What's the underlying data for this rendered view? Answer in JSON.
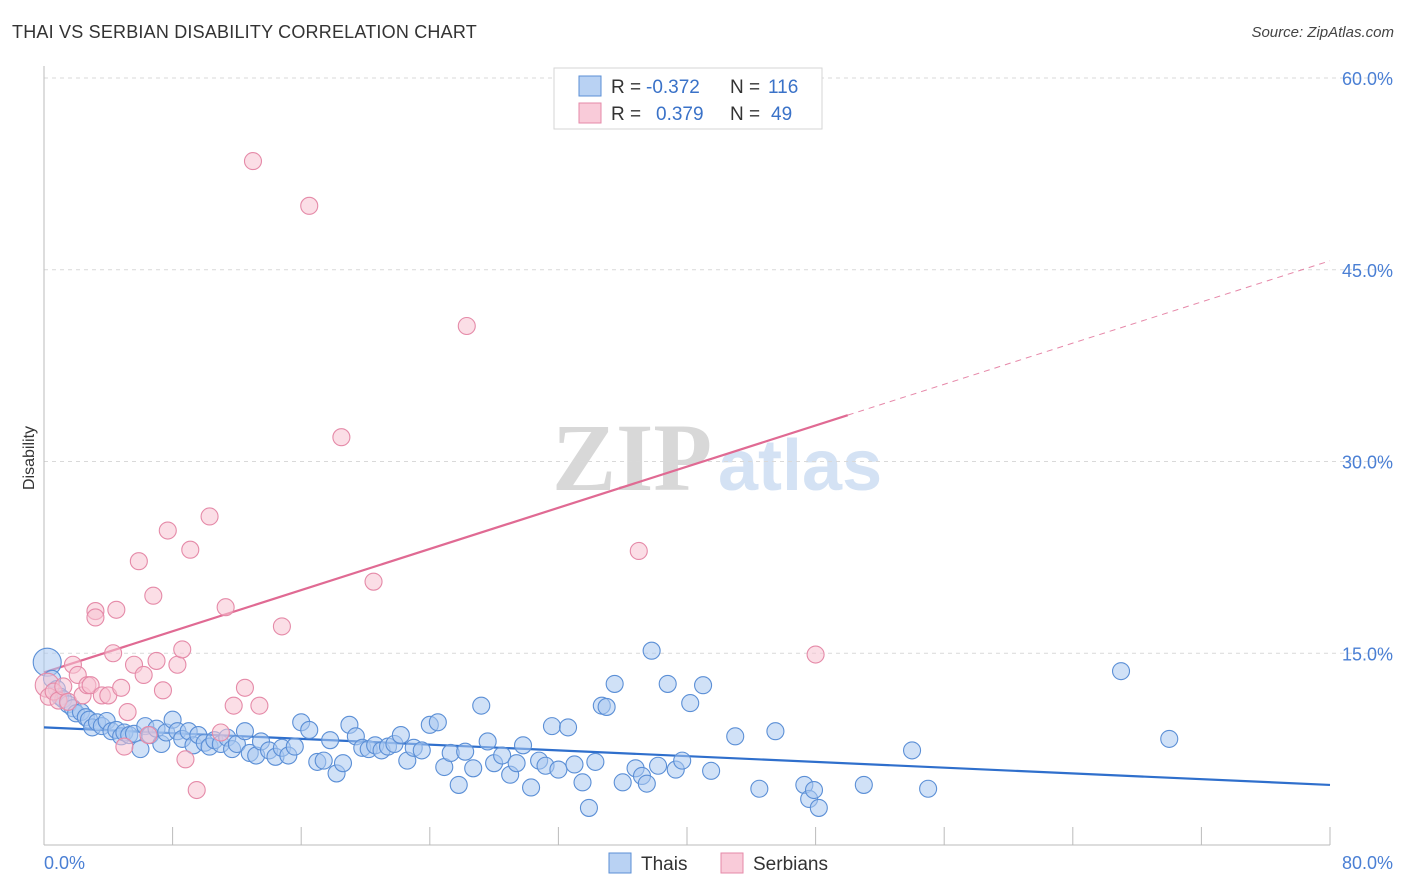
{
  "title": "THAI VS SERBIAN DISABILITY CORRELATION CHART",
  "source": "Source: ZipAtlas.com",
  "watermark": {
    "zip": "ZIP",
    "atlas": "atlas"
  },
  "colors": {
    "thais_fill": "#a9c8f0",
    "thais_stroke": "#5b8fd6",
    "thais_line": "#2f6fcc",
    "serbians_fill": "#f7c2d2",
    "serbians_stroke": "#e58aa8",
    "serbians_line": "#e06a93",
    "grid": "#d9d9d9",
    "tick_text": "#4a7fd4"
  },
  "legend_box": {
    "rows": [
      {
        "r_label": "R =",
        "r_value": "-0.372",
        "n_label": "N =",
        "n_value": "116"
      },
      {
        "r_label": "R =",
        "r_value": "0.379",
        "n_label": "N =",
        "n_value": "49"
      }
    ]
  },
  "chart_data": {
    "type": "scatter",
    "title": "THAI VS SERBIAN DISABILITY CORRELATION CHART",
    "xlabel": "",
    "ylabel": "Disability",
    "xlim": [
      0,
      80
    ],
    "ylim": [
      0,
      60
    ],
    "x_tick_labels": [
      "0.0%",
      "80.0%"
    ],
    "y_tick_labels": [
      "15.0%",
      "30.0%",
      "45.0%",
      "60.0%"
    ],
    "y_ticks": [
      15,
      30,
      45,
      60
    ],
    "grid": true,
    "legend_placement": "bottom-center",
    "series": [
      {
        "name": "Thais",
        "r": -0.372,
        "n": 116,
        "trend": {
          "x": [
            0,
            80
          ],
          "y": [
            9.2,
            4.7
          ],
          "dashed_from": null
        },
        "points": [
          [
            0.2,
            14.3
          ],
          [
            0.5,
            13.0
          ],
          [
            0.8,
            12.2
          ],
          [
            1.0,
            11.6
          ],
          [
            1.2,
            11.4
          ],
          [
            1.5,
            11.0
          ],
          [
            1.8,
            10.7
          ],
          [
            2.0,
            10.3
          ],
          [
            2.3,
            10.4
          ],
          [
            2.6,
            10.0
          ],
          [
            2.8,
            9.8
          ],
          [
            3.0,
            9.2
          ],
          [
            3.3,
            9.6
          ],
          [
            3.6,
            9.3
          ],
          [
            3.9,
            9.7
          ],
          [
            4.2,
            8.9
          ],
          [
            4.5,
            9.0
          ],
          [
            4.8,
            8.5
          ],
          [
            5.0,
            8.8
          ],
          [
            5.3,
            8.6
          ],
          [
            5.6,
            8.7
          ],
          [
            6.0,
            7.5
          ],
          [
            6.3,
            9.3
          ],
          [
            6.6,
            8.6
          ],
          [
            7.0,
            9.1
          ],
          [
            7.3,
            7.9
          ],
          [
            7.6,
            8.8
          ],
          [
            8.0,
            9.8
          ],
          [
            8.3,
            8.9
          ],
          [
            8.6,
            8.3
          ],
          [
            9.0,
            8.9
          ],
          [
            9.3,
            7.8
          ],
          [
            9.6,
            8.6
          ],
          [
            10.0,
            8.0
          ],
          [
            10.3,
            7.7
          ],
          [
            10.6,
            8.2
          ],
          [
            11.0,
            7.9
          ],
          [
            11.4,
            8.4
          ],
          [
            11.7,
            7.5
          ],
          [
            12.0,
            7.9
          ],
          [
            12.5,
            8.9
          ],
          [
            12.8,
            7.2
          ],
          [
            13.2,
            7.0
          ],
          [
            13.5,
            8.1
          ],
          [
            14.0,
            7.4
          ],
          [
            14.4,
            6.9
          ],
          [
            14.8,
            7.6
          ],
          [
            15.2,
            7.0
          ],
          [
            15.6,
            7.7
          ],
          [
            16.0,
            9.6
          ],
          [
            16.5,
            9.0
          ],
          [
            17.0,
            6.5
          ],
          [
            17.4,
            6.6
          ],
          [
            17.8,
            8.2
          ],
          [
            18.2,
            5.6
          ],
          [
            18.6,
            6.4
          ],
          [
            19.0,
            9.4
          ],
          [
            19.4,
            8.5
          ],
          [
            19.8,
            7.6
          ],
          [
            20.2,
            7.5
          ],
          [
            20.6,
            7.8
          ],
          [
            21.0,
            7.4
          ],
          [
            21.4,
            7.7
          ],
          [
            21.8,
            7.9
          ],
          [
            22.2,
            8.6
          ],
          [
            22.6,
            6.6
          ],
          [
            23.0,
            7.6
          ],
          [
            23.5,
            7.4
          ],
          [
            24.0,
            9.4
          ],
          [
            24.5,
            9.6
          ],
          [
            24.9,
            6.1
          ],
          [
            25.3,
            7.2
          ],
          [
            25.8,
            4.7
          ],
          [
            26.2,
            7.3
          ],
          [
            26.7,
            6.0
          ],
          [
            27.2,
            10.9
          ],
          [
            27.6,
            8.1
          ],
          [
            28.0,
            6.4
          ],
          [
            28.5,
            7.0
          ],
          [
            29.0,
            5.5
          ],
          [
            29.4,
            6.4
          ],
          [
            29.8,
            7.8
          ],
          [
            30.3,
            4.5
          ],
          [
            30.8,
            6.6
          ],
          [
            31.2,
            6.2
          ],
          [
            31.6,
            9.3
          ],
          [
            32.0,
            5.9
          ],
          [
            32.6,
            9.2
          ],
          [
            33.0,
            6.3
          ],
          [
            33.5,
            4.9
          ],
          [
            33.9,
            2.9
          ],
          [
            34.3,
            6.5
          ],
          [
            34.7,
            10.9
          ],
          [
            35.0,
            10.8
          ],
          [
            35.5,
            12.6
          ],
          [
            36.0,
            4.9
          ],
          [
            36.8,
            6.0
          ],
          [
            37.2,
            5.4
          ],
          [
            37.5,
            4.8
          ],
          [
            37.8,
            15.2
          ],
          [
            38.2,
            6.2
          ],
          [
            38.8,
            12.6
          ],
          [
            39.3,
            5.9
          ],
          [
            39.7,
            6.6
          ],
          [
            40.2,
            11.1
          ],
          [
            41.0,
            12.5
          ],
          [
            41.5,
            5.8
          ],
          [
            43.0,
            8.5
          ],
          [
            44.5,
            4.4
          ],
          [
            45.5,
            8.9
          ],
          [
            47.3,
            4.7
          ],
          [
            47.6,
            3.6
          ],
          [
            47.9,
            4.3
          ],
          [
            48.2,
            2.9
          ],
          [
            51.0,
            4.7
          ],
          [
            54.0,
            7.4
          ],
          [
            55.0,
            4.4
          ],
          [
            67.0,
            13.6
          ],
          [
            70.0,
            8.3
          ]
        ]
      },
      {
        "name": "Serbians",
        "r": 0.379,
        "n": 49,
        "trend": {
          "x": [
            0,
            80
          ],
          "y": [
            13.5,
            45.7
          ],
          "solid_until_x": 50
        },
        "points": [
          [
            0.2,
            12.5
          ],
          [
            0.3,
            11.6
          ],
          [
            0.6,
            12.0
          ],
          [
            0.9,
            11.3
          ],
          [
            1.2,
            12.4
          ],
          [
            1.5,
            11.2
          ],
          [
            1.8,
            14.1
          ],
          [
            2.1,
            13.3
          ],
          [
            2.4,
            11.7
          ],
          [
            2.7,
            12.5
          ],
          [
            2.9,
            12.5
          ],
          [
            3.2,
            18.3
          ],
          [
            3.2,
            17.8
          ],
          [
            3.6,
            11.7
          ],
          [
            4.0,
            11.7
          ],
          [
            4.3,
            15.0
          ],
          [
            4.5,
            18.4
          ],
          [
            4.8,
            12.3
          ],
          [
            5.0,
            7.7
          ],
          [
            5.2,
            10.4
          ],
          [
            5.6,
            14.1
          ],
          [
            5.9,
            22.2
          ],
          [
            6.2,
            13.3
          ],
          [
            6.5,
            8.6
          ],
          [
            6.8,
            19.5
          ],
          [
            7.0,
            14.4
          ],
          [
            7.4,
            12.1
          ],
          [
            7.7,
            24.6
          ],
          [
            8.3,
            14.1
          ],
          [
            8.6,
            15.3
          ],
          [
            8.8,
            6.7
          ],
          [
            9.1,
            23.1
          ],
          [
            9.5,
            4.3
          ],
          [
            10.3,
            25.7
          ],
          [
            11.0,
            8.8
          ],
          [
            11.3,
            18.6
          ],
          [
            11.8,
            10.9
          ],
          [
            12.5,
            12.3
          ],
          [
            13.0,
            53.5
          ],
          [
            13.4,
            10.9
          ],
          [
            14.8,
            17.1
          ],
          [
            16.5,
            50.0
          ],
          [
            18.5,
            31.9
          ],
          [
            20.5,
            20.6
          ],
          [
            26.3,
            40.6
          ],
          [
            37.0,
            23.0
          ],
          [
            48.0,
            14.9
          ]
        ]
      }
    ]
  },
  "bottom_legend": [
    {
      "label": "Thais"
    },
    {
      "label": "Serbians"
    }
  ]
}
